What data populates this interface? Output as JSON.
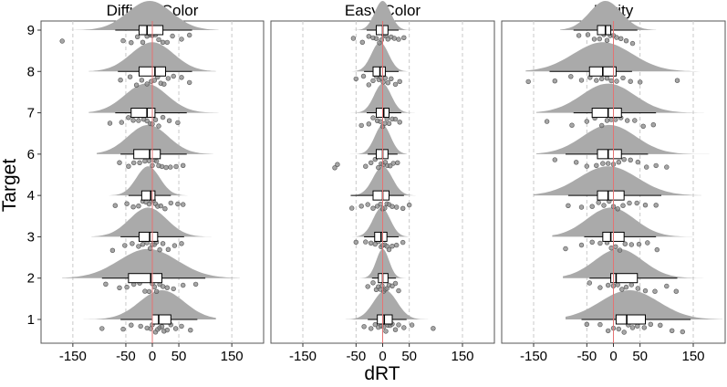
{
  "chart_data": {
    "type": "raincloud",
    "xlabel": "dRT",
    "ylabel": "Target",
    "xlim": [
      -210,
      210
    ],
    "xticks": [
      -150,
      -50,
      0,
      50,
      150
    ],
    "xtick_labels": [
      "-150",
      "-50",
      "0",
      "50",
      "150"
    ],
    "targets": [
      "1",
      "2",
      "3",
      "4",
      "6",
      "7",
      "8",
      "9"
    ],
    "reference_line_x": 0,
    "colors": {
      "density": "#aaaaaa",
      "points": "#888888",
      "box": "#ffffff",
      "reference_line": "#e57373",
      "grid": "#c8c8c8",
      "frame": "#555555"
    },
    "panels": [
      {
        "title": "Difficult Color",
        "series": [
          {
            "target": "1",
            "q1": 0,
            "median": 12,
            "q3": 35,
            "wmin": -60,
            "wmax": 85,
            "center": 18,
            "spread": 42,
            "dmin": -130,
            "dmax": 120,
            "points": [
              -95,
              -55,
              -40,
              -22,
              -10,
              -3,
              0,
              6,
              10,
              14,
              18,
              22,
              28,
              35,
              44,
              55,
              72
            ]
          },
          {
            "target": "2",
            "q1": -45,
            "median": -3,
            "q3": 18,
            "wmin": -95,
            "wmax": 100,
            "center": -8,
            "spread": 55,
            "dmin": -170,
            "dmax": 165,
            "points": [
              -88,
              -62,
              -48,
              -35,
              -24,
              -14,
              -6,
              0,
              4,
              8,
              14,
              20,
              28,
              40,
              58,
              82
            ]
          },
          {
            "target": "3",
            "q1": -25,
            "median": -5,
            "q3": 10,
            "wmin": -60,
            "wmax": 60,
            "center": -8,
            "spread": 35,
            "dmin": -115,
            "dmax": 130,
            "points": [
              -75,
              -52,
              -38,
              -26,
              -18,
              -10,
              -4,
              0,
              4,
              8,
              14,
              20,
              30,
              42,
              55
            ]
          },
          {
            "target": "4",
            "q1": -20,
            "median": -3,
            "q3": 5,
            "wmin": -45,
            "wmax": 35,
            "center": -8,
            "spread": 22,
            "dmin": -120,
            "dmax": 125,
            "points": [
              -70,
              -48,
              -36,
              -26,
              -18,
              -12,
              -6,
              -2,
              2,
              6,
              10,
              16,
              24,
              35,
              48,
              58
            ]
          },
          {
            "target": "6",
            "q1": -35,
            "median": -5,
            "q3": 15,
            "wmin": -60,
            "wmax": 65,
            "center": -8,
            "spread": 38,
            "dmin": -105,
            "dmax": 115,
            "points": [
              -62,
              -45,
              -35,
              -24,
              -14,
              -6,
              0,
              4,
              8,
              12,
              18,
              26,
              34,
              45,
              58
            ]
          },
          {
            "target": "7",
            "q1": -40,
            "median": -10,
            "q3": 5,
            "wmin": -70,
            "wmax": 65,
            "center": -12,
            "spread": 40,
            "dmin": -120,
            "dmax": 125,
            "points": [
              -80,
              -58,
              -45,
              -36,
              -26,
              -16,
              -10,
              -4,
              0,
              6,
              12,
              20,
              32,
              48
            ]
          },
          {
            "target": "8",
            "q1": -25,
            "median": 5,
            "q3": 25,
            "wmin": -65,
            "wmax": 75,
            "center": 0,
            "spread": 40,
            "dmin": -120,
            "dmax": 120,
            "points": [
              -60,
              -42,
              -30,
              -20,
              -10,
              -2,
              4,
              10,
              16,
              22,
              30,
              40,
              55,
              70
            ]
          },
          {
            "target": "9",
            "q1": -25,
            "median": -10,
            "q3": 20,
            "wmin": -70,
            "wmax": 75,
            "center": -5,
            "spread": 42,
            "dmin": -200,
            "dmax": 125,
            "points": [
              -170,
              -55,
              -40,
              -28,
              -18,
              -10,
              -4,
              0,
              6,
              12,
              20,
              28,
              38,
              55,
              70
            ]
          }
        ]
      },
      {
        "title": "Easy Color",
        "series": [
          {
            "target": "1",
            "q1": -10,
            "median": 3,
            "q3": 18,
            "wmin": -28,
            "wmax": 45,
            "center": 5,
            "spread": 22,
            "dmin": -70,
            "dmax": 130,
            "points": [
              -35,
              -22,
              -14,
              -8,
              -2,
              2,
              6,
              10,
              14,
              18,
              24,
              30,
              40,
              55,
              95
            ]
          },
          {
            "target": "2",
            "q1": -8,
            "median": 0,
            "q3": 10,
            "wmin": -20,
            "wmax": 25,
            "center": 0,
            "spread": 12,
            "dmin": -55,
            "dmax": 55,
            "points": [
              -28,
              -18,
              -12,
              -8,
              -4,
              -1,
              2,
              5,
              8,
              12,
              18,
              24,
              30
            ]
          },
          {
            "target": "3",
            "q1": -15,
            "median": -3,
            "q3": 8,
            "wmin": -35,
            "wmax": 30,
            "center": -2,
            "spread": 16,
            "dmin": -70,
            "dmax": 70,
            "points": [
              -50,
              -32,
              -22,
              -14,
              -8,
              -3,
              0,
              4,
              8,
              12,
              18,
              26,
              38
            ]
          },
          {
            "target": "4",
            "q1": -18,
            "median": 0,
            "q3": 12,
            "wmin": -60,
            "wmax": 40,
            "center": 0,
            "spread": 18,
            "dmin": -70,
            "dmax": 70,
            "points": [
              -58,
              -40,
              -28,
              -18,
              -10,
              -4,
              0,
              4,
              8,
              12,
              18,
              26,
              38,
              50
            ]
          },
          {
            "target": "6",
            "q1": -12,
            "median": 0,
            "q3": 10,
            "wmin": -28,
            "wmax": 28,
            "center": 0,
            "spread": 15,
            "dmin": -120,
            "dmax": 45,
            "points": [
              -90,
              -85,
              -32,
              -22,
              -14,
              -8,
              -3,
              1,
              5,
              9,
              14,
              20,
              28
            ]
          },
          {
            "target": "7",
            "q1": -12,
            "median": 2,
            "q3": 12,
            "wmin": -30,
            "wmax": 35,
            "center": 0,
            "spread": 16,
            "dmin": -60,
            "dmax": 70,
            "points": [
              -40,
              -26,
              -18,
              -10,
              -4,
              0,
              4,
              8,
              12,
              18,
              24,
              32
            ]
          },
          {
            "target": "8",
            "q1": -18,
            "median": -5,
            "q3": 5,
            "wmin": -35,
            "wmax": 30,
            "center": -5,
            "spread": 16,
            "dmin": -75,
            "dmax": 65,
            "points": [
              -50,
              -36,
              -26,
              -18,
              -12,
              -7,
              -3,
              1,
              5,
              10,
              16,
              24,
              32
            ]
          },
          {
            "target": "9",
            "q1": -12,
            "median": 0,
            "q3": 10,
            "wmin": -30,
            "wmax": 30,
            "center": 0,
            "spread": 15,
            "dmin": -75,
            "dmax": 70,
            "points": [
              -55,
              -38,
              -26,
              -18,
              -12,
              -6,
              -2,
              2,
              6,
              10,
              16,
              22,
              30,
              40
            ]
          }
        ]
      },
      {
        "title": "Parity",
        "series": [
          {
            "target": "1",
            "q1": 5,
            "median": 25,
            "q3": 60,
            "wmin": -60,
            "wmax": 145,
            "center": 30,
            "spread": 55,
            "dmin": -90,
            "dmax": 205,
            "points": [
              -50,
              -25,
              -10,
              0,
              10,
              20,
              28,
              36,
              45,
              58,
              70,
              88,
              110,
              130
            ]
          },
          {
            "target": "2",
            "q1": -5,
            "median": 5,
            "q3": 45,
            "wmin": -45,
            "wmax": 120,
            "center": 10,
            "spread": 45,
            "dmin": -95,
            "dmax": 175,
            "points": [
              -45,
              -25,
              -10,
              0,
              8,
              16,
              24,
              34,
              46,
              60,
              78,
              100,
              118
            ]
          },
          {
            "target": "3",
            "q1": -20,
            "median": -5,
            "q3": 20,
            "wmin": -55,
            "wmax": 80,
            "center": -5,
            "spread": 45,
            "dmin": -115,
            "dmax": 200,
            "points": [
              -90,
              -60,
              -40,
              -25,
              -12,
              -4,
              4,
              12,
              22,
              34,
              48,
              64,
              82
            ]
          },
          {
            "target": "4",
            "q1": -30,
            "median": -10,
            "q3": 20,
            "wmin": -85,
            "wmax": 90,
            "center": -10,
            "spread": 55,
            "dmin": -150,
            "dmax": 165,
            "points": [
              -85,
              -60,
              -40,
              -28,
              -18,
              -8,
              0,
              8,
              18,
              30,
              44,
              60,
              80
            ]
          },
          {
            "target": "6",
            "q1": -30,
            "median": -10,
            "q3": 15,
            "wmin": -90,
            "wmax": 65,
            "center": -8,
            "spread": 50,
            "dmin": -145,
            "dmax": 180,
            "points": [
              -110,
              -70,
              -50,
              -32,
              -20,
              -10,
              0,
              10,
              20,
              32,
              46,
              62,
              80,
              100
            ]
          },
          {
            "target": "7",
            "q1": -40,
            "median": -10,
            "q3": 15,
            "wmin": -75,
            "wmax": 80,
            "center": -10,
            "spread": 50,
            "dmin": -145,
            "dmax": 170,
            "points": [
              -125,
              -78,
              -50,
              -35,
              -22,
              -12,
              -4,
              4,
              14,
              26,
              40,
              56,
              75
            ]
          },
          {
            "target": "8",
            "q1": -45,
            "median": -20,
            "q3": 5,
            "wmin": -120,
            "wmax": 35,
            "center": -20,
            "spread": 55,
            "dmin": -165,
            "dmax": 175,
            "points": [
              -160,
              -110,
              -80,
              -60,
              -44,
              -32,
              -22,
              -12,
              -4,
              6,
              18,
              32,
              50,
              120
            ]
          },
          {
            "target": "9",
            "q1": -30,
            "median": -15,
            "q3": -5,
            "wmin": -75,
            "wmax": 45,
            "center": -15,
            "spread": 30,
            "dmin": -100,
            "dmax": 80,
            "points": [
              -65,
              -48,
              -36,
              -26,
              -18,
              -12,
              -6,
              0,
              6,
              14,
              24,
              36
            ]
          }
        ]
      }
    ]
  }
}
